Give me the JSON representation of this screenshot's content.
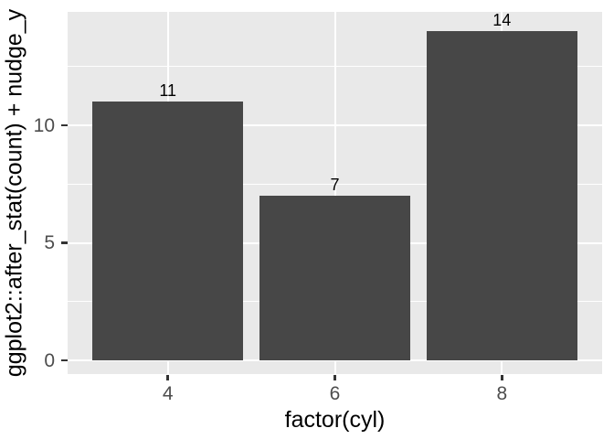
{
  "chart_data": {
    "type": "bar",
    "categories": [
      "4",
      "6",
      "8"
    ],
    "values": [
      11,
      7,
      14
    ],
    "bar_value_labels": [
      "11",
      "7",
      "14"
    ],
    "title": "",
    "xlabel": "factor(cyl)",
    "ylabel": "ggplot2::after_stat(count) + nudge_y",
    "ylim": [
      -0.58,
      14.83
    ],
    "y_major_ticks": [
      0,
      5,
      10
    ],
    "y_major_tick_labels": [
      "0",
      "5",
      "10"
    ],
    "y_minor_gridlines": [
      2.5,
      7.5,
      12.5
    ],
    "grid": "white major and minor gridlines on gray panel",
    "legend_position": "none",
    "bar_width_fraction": 0.9
  },
  "style": {
    "figure_background": "#FFFFFF",
    "panel_background": "#E9E9E9",
    "bar_fill": "#474747",
    "gridline_color": "#FFFFFF",
    "tick_mark_color": "#333333",
    "tick_label_color": "#4D4D4D",
    "axis_title_color": "#000000",
    "bar_label_color": "#000000"
  }
}
